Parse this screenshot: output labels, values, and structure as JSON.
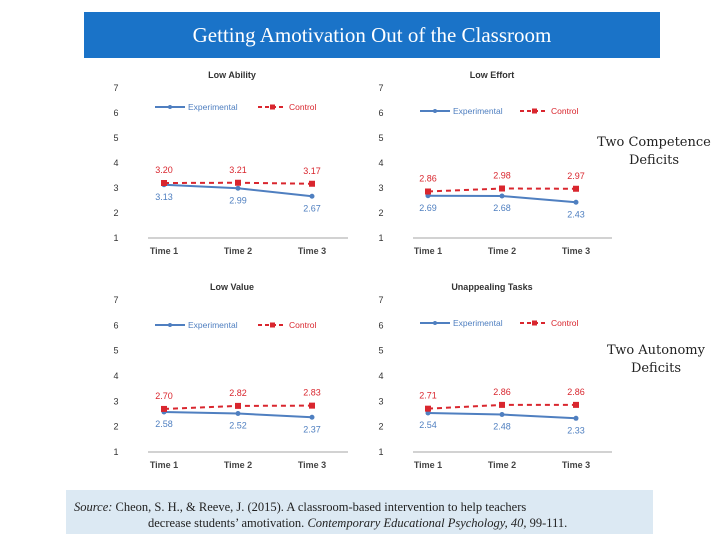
{
  "header": {
    "title": "Getting Amotivation Out of the Classroom"
  },
  "side_labels": {
    "competence": [
      "Two Competence",
      "Deficits"
    ],
    "autonomy": [
      "Two Autonomy",
      "Deficits"
    ]
  },
  "source": {
    "prefix": "Source:",
    "line1_rest": " Cheon, S. H., & Reeve, J. (2015).  A classroom-based intervention to help teachers",
    "line2_start": "decrease students’ amotivation. ",
    "journal": "Contemporary Educational Psychology, 40,",
    "pages": " 99-111."
  },
  "colors": {
    "experimental": "#4f7fc0",
    "control": "#d9262e",
    "title_bg": "#1a73c8",
    "source_bg": "#dce9f3"
  },
  "chart_data": [
    {
      "type": "line",
      "title": "Low Ability",
      "categories": [
        "Time 1",
        "Time 2",
        "Time 3"
      ],
      "ylim": [
        1,
        7
      ],
      "yticks": [
        "1",
        "2",
        "3",
        "4",
        "5",
        "6",
        "7"
      ],
      "series": [
        {
          "name": "Experimental",
          "values": [
            3.13,
            2.99,
            2.67
          ],
          "labels": [
            "3.13",
            "2.99",
            "2.67"
          ]
        },
        {
          "name": "Control",
          "values": [
            3.2,
            3.21,
            3.17
          ],
          "labels": [
            "3.20",
            "3.21",
            "3.17"
          ]
        }
      ]
    },
    {
      "type": "line",
      "title": "Low Effort",
      "categories": [
        "Time 1",
        "Time 2",
        "Time 3"
      ],
      "ylim": [
        1,
        7
      ],
      "yticks": [
        "1",
        "2",
        "3",
        "4",
        "5",
        "6",
        "7"
      ],
      "series": [
        {
          "name": "Experimental",
          "values": [
            2.69,
            2.68,
            2.43
          ],
          "labels": [
            "2.69",
            "2.68",
            "2.43"
          ]
        },
        {
          "name": "Control",
          "values": [
            2.86,
            2.98,
            2.97
          ],
          "labels": [
            "2.86",
            "2.98",
            "2.97"
          ]
        }
      ]
    },
    {
      "type": "line",
      "title": "Low Value",
      "categories": [
        "Time 1",
        "Time 2",
        "Time 3"
      ],
      "ylim": [
        1,
        7
      ],
      "yticks": [
        "1",
        "2",
        "3",
        "4",
        "5",
        "6",
        "7"
      ],
      "series": [
        {
          "name": "Experimental",
          "values": [
            2.58,
            2.52,
            2.37
          ],
          "labels": [
            "2.58",
            "2.52",
            "2.37"
          ]
        },
        {
          "name": "Control",
          "values": [
            2.7,
            2.82,
            2.83
          ],
          "labels": [
            "2.70",
            "2.82",
            "2.83"
          ]
        }
      ]
    },
    {
      "type": "line",
      "title": "Unappealing Tasks",
      "categories": [
        "Time 1",
        "Time 2",
        "Time 3"
      ],
      "ylim": [
        1,
        7
      ],
      "yticks": [
        "1",
        "2",
        "3",
        "4",
        "5",
        "6",
        "7"
      ],
      "series": [
        {
          "name": "Experimental",
          "values": [
            2.54,
            2.48,
            2.33
          ],
          "labels": [
            "2.54",
            "2.48",
            "2.33"
          ]
        },
        {
          "name": "Control",
          "values": [
            2.71,
            2.86,
            2.86
          ],
          "labels": [
            "2.71",
            "2.86",
            "2.86"
          ]
        }
      ]
    }
  ]
}
